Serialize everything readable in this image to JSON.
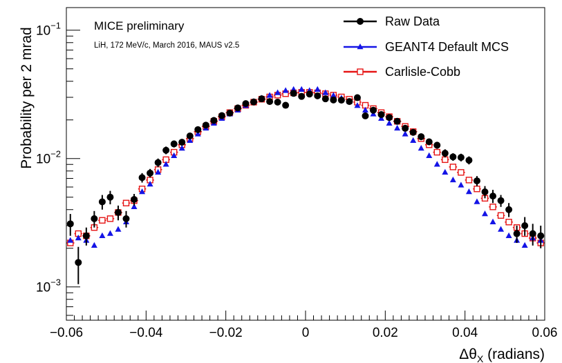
{
  "chart_data": {
    "type": "scatter",
    "log_y": true,
    "xlim": [
      -0.06,
      0.06
    ],
    "ylim": [
      0.00055,
      0.15
    ],
    "ylabel": "Probability per 2 mrad",
    "xlabel": {
      "prefix": "Δθ",
      "sub": "X",
      "suffix": " (radians)"
    },
    "x_ticks": [
      {
        "v": -0.06,
        "label": "−0.06"
      },
      {
        "v": -0.04,
        "label": "−0.04"
      },
      {
        "v": -0.02,
        "label": "−0.02"
      },
      {
        "v": 0,
        "label": "0"
      },
      {
        "v": 0.02,
        "label": "0.02"
      },
      {
        "v": 0.04,
        "label": "0.04"
      },
      {
        "v": 0.06,
        "label": "0.06"
      }
    ],
    "y_ticks": [
      {
        "v": 0.001,
        "base": "10",
        "exp": "−3"
      },
      {
        "v": 0.01,
        "base": "10",
        "exp": "−2"
      },
      {
        "v": 0.1,
        "base": "10",
        "exp": "−1"
      }
    ],
    "annotations": {
      "title": "MICE preliminary",
      "subtitle": "LiH, 172 MeV/c, March 2016, MAUS v2.5"
    },
    "legend_position": "top-right",
    "x": [
      -0.059,
      -0.057,
      -0.055,
      -0.053,
      -0.051,
      -0.049,
      -0.047,
      -0.045,
      -0.043,
      -0.041,
      -0.039,
      -0.037,
      -0.035,
      -0.033,
      -0.031,
      -0.029,
      -0.027,
      -0.025,
      -0.023,
      -0.021,
      -0.019,
      -0.017,
      -0.015,
      -0.013,
      -0.011,
      -0.009,
      -0.007,
      -0.005,
      -0.003,
      -0.001,
      0.001,
      0.003,
      0.005,
      0.007,
      0.009,
      0.011,
      0.013,
      0.015,
      0.017,
      0.019,
      0.021,
      0.023,
      0.025,
      0.027,
      0.029,
      0.031,
      0.033,
      0.035,
      0.037,
      0.039,
      0.041,
      0.043,
      0.045,
      0.047,
      0.049,
      0.051,
      0.053,
      0.055,
      0.057,
      0.059
    ],
    "series": [
      {
        "name": "Raw Data",
        "color": "#000000",
        "marker": "circle",
        "values": [
          0.0031,
          0.00155,
          0.0025,
          0.0034,
          0.0046,
          0.005,
          0.0038,
          0.0034,
          0.0048,
          0.0071,
          0.0077,
          0.0093,
          0.0116,
          0.013,
          0.0134,
          0.015,
          0.0168,
          0.0182,
          0.0198,
          0.0216,
          0.0226,
          0.0248,
          0.0268,
          0.0276,
          0.0292,
          0.0278,
          0.0275,
          0.026,
          0.0322,
          0.0305,
          0.0318,
          0.0308,
          0.0292,
          0.0286,
          0.0285,
          0.0278,
          0.0298,
          0.0215,
          0.0238,
          0.022,
          0.0209,
          0.0195,
          0.0172,
          0.016,
          0.0148,
          0.0135,
          0.0127,
          0.011,
          0.0103,
          0.0102,
          0.0097,
          0.0067,
          0.0055,
          0.0051,
          0.0047,
          0.004,
          0.0026,
          0.003,
          0.0026,
          0.0025
        ],
        "errors": [
          0.0006,
          0.0005,
          0.0004,
          0.0005,
          0.0006,
          0.0006,
          0.0005,
          0.0005,
          0.0005,
          0.0006,
          0.0006,
          0.0007,
          0.0008,
          0.0008,
          0.0008,
          0.0008,
          0.0009,
          0.0009,
          0.001,
          0.001,
          0.001,
          0.001,
          0.0011,
          0.0011,
          0.0011,
          0.0011,
          0.0011,
          0.0011,
          0.0012,
          0.0012,
          0.0012,
          0.0012,
          0.0011,
          0.0011,
          0.0011,
          0.0011,
          0.0011,
          0.001,
          0.001,
          0.001,
          0.001,
          0.001,
          0.0009,
          0.0009,
          0.0009,
          0.0008,
          0.0008,
          0.0008,
          0.0007,
          0.0007,
          0.0007,
          0.0006,
          0.0006,
          0.0006,
          0.0005,
          0.0005,
          0.0004,
          0.0005,
          0.0005,
          0.0005
        ]
      },
      {
        "name": "GEANT4 Default MCS",
        "color": "#1414e6",
        "marker": "triangle",
        "values": [
          0.0023,
          0.0024,
          0.0023,
          0.0021,
          0.0025,
          0.0026,
          0.0028,
          0.0032,
          0.0042,
          0.0055,
          0.0063,
          0.0078,
          0.009,
          0.0105,
          0.012,
          0.0138,
          0.0155,
          0.0172,
          0.0188,
          0.0205,
          0.0222,
          0.0238,
          0.0258,
          0.0278,
          0.0295,
          0.031,
          0.0325,
          0.0338,
          0.0345,
          0.0345,
          0.0338,
          0.0345,
          0.0325,
          0.031,
          0.0295,
          0.0278,
          0.0258,
          0.0238,
          0.0222,
          0.0205,
          0.0188,
          0.0172,
          0.0155,
          0.0138,
          0.012,
          0.0105,
          0.009,
          0.0078,
          0.0068,
          0.0062,
          0.0055,
          0.0046,
          0.0037,
          0.0032,
          0.0028,
          0.0025,
          0.0023,
          0.0021,
          0.0024,
          0.0023
        ]
      },
      {
        "name": "Carlisle-Cobb",
        "color": "#e61414",
        "marker": "open-square",
        "values": [
          0.0022,
          0.0026,
          0.0025,
          0.0029,
          0.0033,
          0.0034,
          0.0038,
          0.0045,
          0.0047,
          0.0058,
          0.0068,
          0.0082,
          0.0098,
          0.0112,
          0.0128,
          0.0143,
          0.0162,
          0.0178,
          0.0195,
          0.0212,
          0.0228,
          0.0245,
          0.026,
          0.0275,
          0.029,
          0.0302,
          0.0312,
          0.032,
          0.0325,
          0.0328,
          0.0328,
          0.0325,
          0.032,
          0.0312,
          0.0302,
          0.029,
          0.0275,
          0.026,
          0.0245,
          0.0228,
          0.0212,
          0.0195,
          0.0178,
          0.0162,
          0.0143,
          0.0128,
          0.0112,
          0.0098,
          0.0086,
          0.0078,
          0.0068,
          0.0058,
          0.0049,
          0.0042,
          0.0036,
          0.0032,
          0.0029,
          0.0026,
          0.0024,
          0.0022
        ]
      }
    ]
  }
}
